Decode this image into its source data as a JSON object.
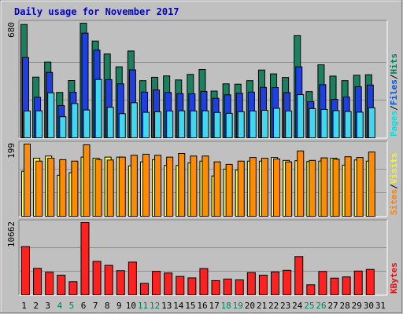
{
  "chart_data": {
    "title": "Daily usage for November 2017",
    "type": "bar",
    "x": [
      1,
      2,
      3,
      4,
      5,
      6,
      7,
      8,
      9,
      10,
      11,
      12,
      13,
      14,
      15,
      16,
      17,
      18,
      19,
      20,
      21,
      22,
      23,
      24,
      25,
      26,
      27,
      28,
      29,
      30,
      31
    ],
    "weekend_days": [
      4,
      5,
      11,
      12,
      18,
      19,
      25,
      26
    ],
    "panels": [
      {
        "name": "pages-files-hits",
        "ymax_label": "680",
        "ymax": 680,
        "legend": [
          {
            "text": "Pages",
            "color": "#00e0e0"
          },
          {
            "text": "/",
            "color": "#000000"
          },
          {
            "text": "Files",
            "color": "#0050e0"
          },
          {
            "text": "/",
            "color": "#000000"
          },
          {
            "text": "Hits",
            "color": "#00805a"
          }
        ],
        "series": [
          {
            "name": "Hits",
            "color": "#1a8060",
            "values": [
              672,
              360,
              449,
              269,
              340,
              680,
              574,
              497,
              421,
              515,
              339,
              359,
              367,
              343,
              376,
              405,
              277,
              320,
              318,
              339,
              402,
              379,
              358,
              606,
              274,
              433,
              366,
              339,
              371,
              374,
              null
            ]
          },
          {
            "name": "Files",
            "color": "#1e40e0",
            "values": [
              476,
              240,
              388,
              191,
              270,
              621,
              520,
              345,
              320,
              403,
              271,
              284,
              269,
              262,
              261,
              275,
              234,
              255,
              264,
              271,
              299,
              298,
              268,
              421,
              214,
              315,
              228,
              242,
              303,
              313,
              null
            ]
          },
          {
            "name": "Pages",
            "color": "#40d8f0",
            "values": [
              159,
              160,
              267,
              125,
              203,
              165,
              346,
              181,
              143,
              208,
              151,
              154,
              159,
              160,
              159,
              160,
              150,
              145,
              155,
              159,
              163,
              175,
              159,
              256,
              173,
              168,
              161,
              156,
              152,
              178,
              null
            ]
          }
        ]
      },
      {
        "name": "visits-sites",
        "ymax_label": "199",
        "ymax": 199,
        "legend": [
          {
            "text": "Sites",
            "color": "#ff8000"
          },
          {
            "text": "/",
            "color": "#000000"
          },
          {
            "text": "Visits",
            "color": "#f0f040"
          }
        ],
        "series": [
          {
            "name": "Visits",
            "color": "#ffff40",
            "values": [
              124,
              160,
              166,
              113,
              120,
              163,
              160,
              163,
              163,
              139,
              150,
              156,
              140,
              140,
              147,
              152,
              111,
              130,
              127,
              152,
              152,
              162,
              154,
              153,
              151,
              152,
              160,
              141,
              155,
              152,
              null
            ]
          },
          {
            "name": "Sites",
            "color": "#ff8c00",
            "values": [
              199,
              152,
              160,
              156,
              152,
              197,
              156,
              155,
              163,
              168,
              171,
              168,
              163,
              173,
              166,
              166,
              150,
              143,
              152,
              162,
              160,
              158,
              150,
              180,
              154,
              161,
              157,
              164,
              162,
              177,
              null
            ]
          }
        ]
      },
      {
        "name": "kbytes",
        "ymax_label": "10662",
        "ymax": 10662,
        "legend": [
          {
            "text": "KBytes",
            "color": "#e01010"
          }
        ],
        "series": [
          {
            "name": "KBytes",
            "color": "#ff2020",
            "values": [
              7110,
              3900,
              3330,
              2895,
              1938,
              10662,
              4929,
              4343,
              3563,
              4822,
              1680,
              3457,
              3216,
              2707,
              2496,
              3871,
              2095,
              2325,
              2197,
              3276,
              2896,
              3376,
              3614,
              5642,
              1471,
              3440,
              2463,
              2636,
              3502,
              3741,
              null
            ]
          }
        ]
      }
    ]
  }
}
